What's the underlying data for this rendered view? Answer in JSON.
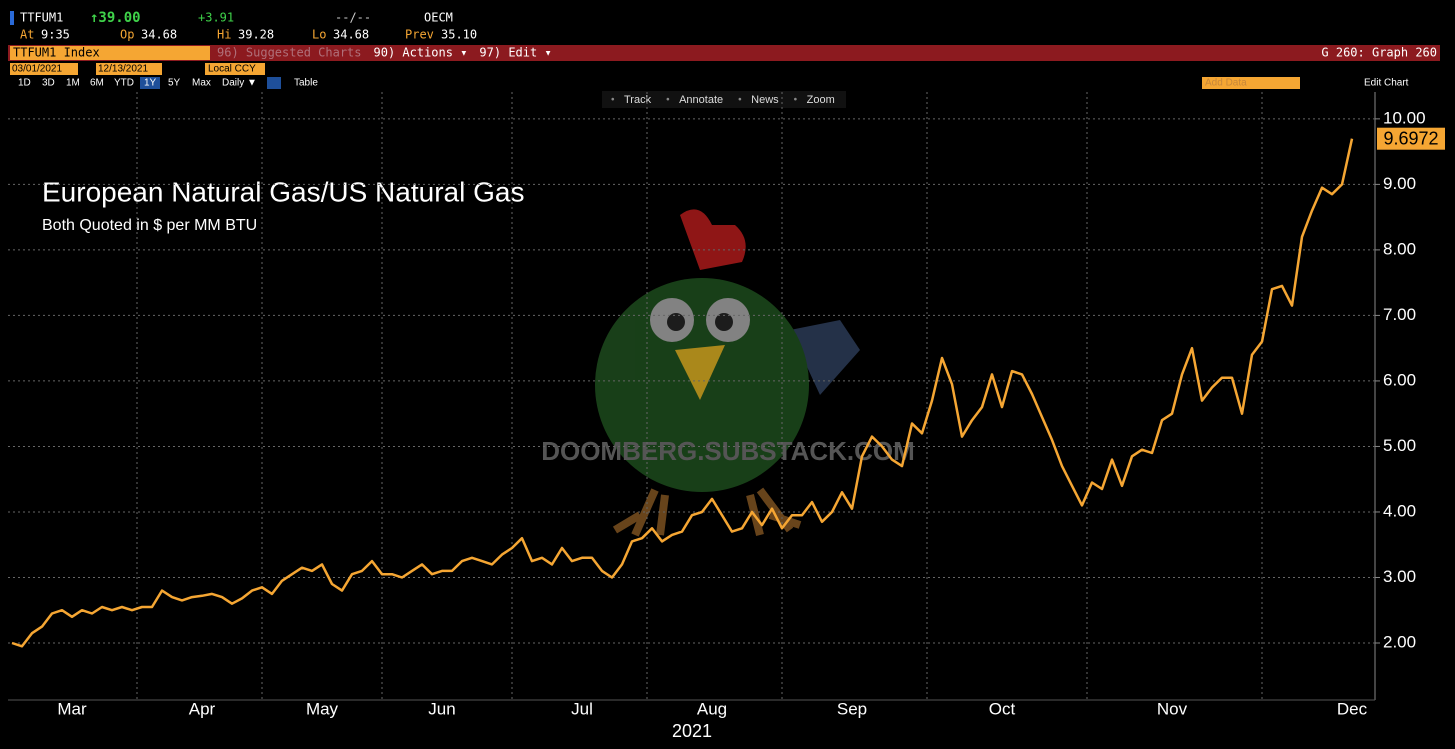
{
  "header": {
    "ticker": "TTFUM1",
    "last": "↑39.00",
    "change": "+3.91",
    "time_range": "--/--",
    "source": "OECM",
    "fields": [
      {
        "label": "At",
        "value": "9:35"
      },
      {
        "label": "Op",
        "value": "34.68"
      },
      {
        "label": "Hi",
        "value": "39.28"
      },
      {
        "label": "Lo",
        "value": "34.68"
      },
      {
        "label": "Prev",
        "value": "35.10"
      }
    ]
  },
  "menu": {
    "security": "TTFUM1 Index",
    "items": [
      "96) Suggested Charts",
      "90) Actions ▾",
      "97) Edit ▾"
    ],
    "graph": "G 260: Graph 260"
  },
  "controls": {
    "start_date": "03/01/2021",
    "end_date": "12/13/2021",
    "currency": "Local CCY",
    "add_data": "Add Data",
    "edit_chart": "Edit Chart",
    "ranges": [
      "1D",
      "3D",
      "1M",
      "6M",
      "YTD",
      "1Y",
      "5Y",
      "Max"
    ],
    "selected_range": "1Y",
    "frequency": "Daily ▼",
    "table": "Table",
    "tools": [
      "Track",
      "Annotate",
      "News",
      "Zoom"
    ]
  },
  "chart_data": {
    "type": "line",
    "title": "European Natural Gas/US Natural Gas",
    "subtitle": "Both Quoted in $ per MM BTU",
    "watermark": "DOOMBERG.SUBSTACK.COM",
    "x_label": "2021",
    "color": "#f5a633",
    "grid": true,
    "ylim": [
      1.13,
      10.41
    ],
    "yticks": [
      {
        "value": 2,
        "label": "2.00"
      },
      {
        "value": 3,
        "label": "3.00"
      },
      {
        "value": 4,
        "label": "4.00"
      },
      {
        "value": 5,
        "label": "5.00"
      },
      {
        "value": 6,
        "label": "6.00"
      },
      {
        "value": 7,
        "label": "7.00"
      },
      {
        "value": 8,
        "label": "8.00"
      },
      {
        "value": 9,
        "label": "9.00"
      },
      {
        "value": 10,
        "label": "10.00"
      }
    ],
    "categories": [
      null,
      null,
      null,
      null,
      null,
      null,
      "Mar",
      null,
      null,
      null,
      null,
      null,
      null,
      null,
      null,
      null,
      null,
      null,
      null,
      "Apr",
      null,
      null,
      null,
      null,
      null,
      null,
      null,
      null,
      null,
      null,
      null,
      "May",
      null,
      null,
      null,
      null,
      null,
      null,
      null,
      null,
      null,
      null,
      null,
      "Jun",
      null,
      null,
      null,
      null,
      null,
      null,
      null,
      null,
      null,
      null,
      null,
      null,
      null,
      "Jul",
      null,
      null,
      null,
      null,
      null,
      null,
      null,
      null,
      null,
      null,
      null,
      null,
      "Aug",
      null,
      null,
      null,
      null,
      null,
      null,
      null,
      null,
      null,
      null,
      null,
      null,
      null,
      "Sep",
      null,
      null,
      null,
      null,
      null,
      null,
      null,
      null,
      null,
      null,
      null,
      null,
      null,
      null,
      "Oct",
      null,
      null,
      null,
      null,
      null,
      null,
      null,
      null,
      null,
      null,
      null,
      null,
      null,
      null,
      null,
      null,
      "Nov",
      null,
      null,
      null,
      null,
      null,
      null,
      null,
      null,
      null,
      null,
      null,
      null,
      null,
      null,
      null,
      null,
      null,
      "Dec"
    ],
    "values": [
      2.0,
      1.95,
      2.15,
      2.25,
      2.45,
      2.5,
      2.4,
      2.5,
      2.45,
      2.55,
      2.5,
      2.55,
      2.5,
      2.55,
      2.55,
      2.8,
      2.7,
      2.65,
      2.7,
      2.72,
      2.75,
      2.7,
      2.6,
      2.68,
      2.8,
      2.85,
      2.75,
      2.95,
      3.05,
      3.15,
      3.1,
      3.2,
      2.9,
      2.8,
      3.05,
      3.1,
      3.25,
      3.05,
      3.05,
      3.0,
      3.1,
      3.2,
      3.05,
      3.1,
      3.1,
      3.25,
      3.3,
      3.25,
      3.2,
      3.35,
      3.45,
      3.6,
      3.25,
      3.3,
      3.2,
      3.45,
      3.25,
      3.3,
      3.3,
      3.1,
      3.0,
      3.2,
      3.55,
      3.6,
      3.75,
      3.55,
      3.65,
      3.7,
      3.95,
      4.0,
      4.2,
      3.95,
      3.7,
      3.75,
      4.0,
      3.8,
      4.05,
      3.75,
      3.95,
      3.95,
      4.15,
      3.85,
      4.0,
      4.3,
      4.05,
      4.85,
      5.15,
      5.0,
      4.8,
      4.7,
      5.35,
      5.2,
      5.7,
      6.35,
      5.95,
      5.15,
      5.4,
      5.6,
      6.1,
      5.6,
      6.15,
      6.1,
      5.8,
      5.45,
      5.1,
      4.7,
      4.4,
      4.1,
      4.45,
      4.35,
      4.8,
      4.4,
      4.85,
      4.95,
      4.9,
      5.4,
      5.5,
      6.1,
      6.5,
      5.7,
      5.9,
      6.05,
      6.05,
      5.5,
      6.4,
      6.6,
      7.4,
      7.45,
      7.15,
      8.2,
      8.6,
      8.95,
      8.85,
      9.0,
      9.6972
    ]
  }
}
